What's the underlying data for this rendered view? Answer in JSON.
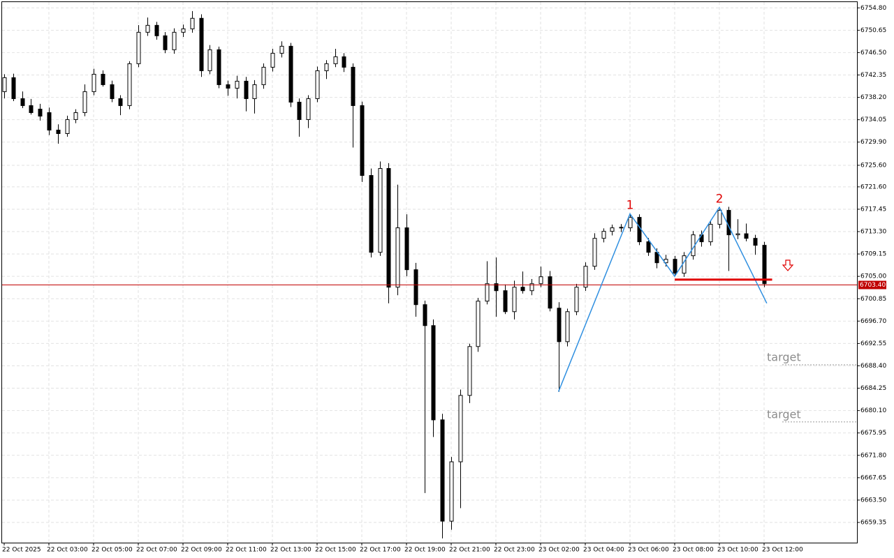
{
  "chart_data": {
    "type": "candlestick",
    "categories": [
      "22 Oct 2025",
      null,
      null,
      null,
      null,
      "22 Oct 03:00",
      null,
      null,
      null,
      null,
      "22 Oct 05:00",
      null,
      null,
      null,
      null,
      "22 Oct 07:00",
      null,
      null,
      null,
      null,
      "22 Oct 09:00",
      null,
      null,
      null,
      null,
      "22 Oct 11:00",
      null,
      null,
      null,
      null,
      "22 Oct 13:00",
      null,
      null,
      null,
      null,
      "22 Oct 15:00",
      null,
      null,
      null,
      null,
      "22 Oct 17:00",
      null,
      null,
      null,
      null,
      "22 Oct 19:00",
      null,
      null,
      null,
      null,
      "22 Oct 21:00",
      null,
      null,
      null,
      null,
      "22 Oct 23:00",
      null,
      null,
      null,
      null,
      "23 Oct 02:00",
      null,
      null,
      null,
      null,
      "23 Oct 04:00",
      null,
      null,
      null,
      null,
      "23 Oct 06:00",
      null,
      null,
      null,
      null,
      "23 Oct 08:00",
      null,
      null,
      null,
      null,
      "23 Oct 10:00",
      null,
      null,
      null,
      null,
      "23 Oct 12:00"
    ],
    "ohlc": [
      [
        6739.26,
        6742.49,
        6738.0,
        6741.85
      ],
      [
        6741.85,
        6742.6,
        6737.5,
        6737.96
      ],
      [
        6737.96,
        6739.3,
        6736.2,
        6736.67
      ],
      [
        6736.67,
        6737.9,
        6735.0,
        6735.37
      ],
      [
        6736.02,
        6737.0,
        6733.9,
        6734.72
      ],
      [
        6735.37,
        6736.3,
        6731.2,
        6732.13
      ],
      [
        6732.13,
        6733.2,
        6729.6,
        6731.48
      ],
      [
        6731.48,
        6734.8,
        6730.9,
        6734.08
      ],
      [
        6734.08,
        6736.0,
        6733.4,
        6735.37
      ],
      [
        6735.37,
        6740.6,
        6734.7,
        6739.26
      ],
      [
        6739.26,
        6743.5,
        6738.6,
        6742.49
      ],
      [
        6742.49,
        6743.2,
        6740.2,
        6740.55
      ],
      [
        6740.55,
        6741.3,
        6737.3,
        6737.96
      ],
      [
        6737.96,
        6738.6,
        6734.9,
        6736.67
      ],
      [
        6736.67,
        6744.9,
        6736.0,
        6744.44
      ],
      [
        6744.44,
        6751.6,
        6743.8,
        6750.27
      ],
      [
        6750.27,
        6753.0,
        6749.6,
        6751.56
      ],
      [
        6751.56,
        6752.2,
        6748.9,
        6749.62
      ],
      [
        6749.62,
        6750.3,
        6746.4,
        6747.03
      ],
      [
        6747.03,
        6751.0,
        6746.3,
        6750.27
      ],
      [
        6750.27,
        6751.7,
        6749.4,
        6750.91
      ],
      [
        6750.91,
        6754.2,
        6750.2,
        6752.86
      ],
      [
        6752.86,
        6753.6,
        6742.0,
        6743.14
      ],
      [
        6743.14,
        6747.9,
        6742.5,
        6747.03
      ],
      [
        6747.03,
        6747.6,
        6739.9,
        6740.55
      ],
      [
        6740.55,
        6741.3,
        6738.5,
        6739.9
      ],
      [
        6739.9,
        6742.2,
        6738.0,
        6741.2
      ],
      [
        6741.2,
        6742.0,
        6735.6,
        6737.96
      ],
      [
        6737.96,
        6741.4,
        6735.2,
        6740.55
      ],
      [
        6740.55,
        6744.5,
        6739.8,
        6743.79
      ],
      [
        6743.79,
        6747.2,
        6743.0,
        6746.38
      ],
      [
        6746.38,
        6748.6,
        6745.6,
        6747.68
      ],
      [
        6747.68,
        6748.3,
        6736.4,
        6737.31
      ],
      [
        6737.31,
        6738.0,
        6730.9,
        6734.08
      ],
      [
        6734.08,
        6738.6,
        6732.5,
        6737.96
      ],
      [
        6737.96,
        6743.9,
        6737.3,
        6743.14
      ],
      [
        6743.14,
        6745.1,
        6741.6,
        6744.44
      ],
      [
        6744.44,
        6747.2,
        6743.8,
        6745.73
      ],
      [
        6745.73,
        6746.4,
        6742.9,
        6743.79
      ],
      [
        6743.79,
        6744.5,
        6728.9,
        6736.67
      ],
      [
        6736.67,
        6737.4,
        6722.5,
        6723.71
      ],
      [
        6723.71,
        6725.0,
        6708.5,
        6709.46
      ],
      [
        6709.46,
        6726.3,
        6708.8,
        6725.01
      ],
      [
        6725.01,
        6726.0,
        6700.0,
        6702.99
      ],
      [
        6702.99,
        6722.0,
        6701.5,
        6714.0
      ],
      [
        6714.0,
        6716.5,
        6705.0,
        6706.23
      ],
      [
        6706.23,
        6707.5,
        6697.5,
        6699.75
      ],
      [
        6699.75,
        6700.5,
        6664.8,
        6695.86
      ],
      [
        6695.86,
        6697.0,
        6675.2,
        6678.38
      ],
      [
        6678.38,
        6679.5,
        6656.4,
        6659.59
      ],
      [
        6659.59,
        6671.5,
        6658.0,
        6670.6
      ],
      [
        6670.6,
        6684.0,
        6662.0,
        6682.91
      ],
      [
        6682.91,
        6692.5,
        6681.5,
        6691.98
      ],
      [
        6691.98,
        6701.0,
        6691.0,
        6700.4
      ],
      [
        6700.4,
        6707.8,
        6699.8,
        6703.64
      ],
      [
        6703.64,
        6708.5,
        6697.5,
        6702.34
      ],
      [
        6702.34,
        6703.5,
        6698.0,
        6698.45
      ],
      [
        6698.45,
        6704.2,
        6697.0,
        6702.99
      ],
      [
        6702.99,
        6705.9,
        6701.8,
        6702.34
      ],
      [
        6702.34,
        6704.5,
        6701.5,
        6703.64
      ],
      [
        6703.64,
        6706.8,
        6703.0,
        6704.93
      ],
      [
        6704.93,
        6706.0,
        6698.5,
        6699.1
      ],
      [
        6699.1,
        6700.2,
        6683.6,
        6692.88
      ],
      [
        6692.88,
        6699.0,
        6692.0,
        6698.45
      ],
      [
        6698.45,
        6703.6,
        6697.8,
        6702.99
      ],
      [
        6702.99,
        6707.6,
        6702.3,
        6706.87
      ],
      [
        6706.87,
        6713.0,
        6706.2,
        6712.05
      ],
      [
        6712.05,
        6713.9,
        6711.3,
        6713.35
      ],
      [
        6713.35,
        6714.6,
        6712.6,
        6714.0
      ],
      [
        6714.0,
        6714.7,
        6713.2,
        6714.1
      ],
      [
        6714.0,
        6716.6,
        6713.3,
        6715.94
      ],
      [
        6715.94,
        6716.5,
        6710.8,
        6711.41
      ],
      [
        6711.41,
        6712.1,
        6708.8,
        6709.46
      ],
      [
        6709.46,
        6710.2,
        6706.5,
        6707.52
      ],
      [
        6707.52,
        6709.0,
        6706.8,
        6708.17
      ],
      [
        6708.17,
        6708.8,
        6705.0,
        6705.58
      ],
      [
        6705.58,
        6709.5,
        6704.9,
        6708.82
      ],
      [
        6708.82,
        6713.4,
        6708.1,
        6712.7
      ],
      [
        6712.7,
        6713.5,
        6710.5,
        6711.41
      ],
      [
        6711.41,
        6715.3,
        6710.7,
        6714.65
      ],
      [
        6714.65,
        6717.8,
        6713.9,
        6717.24
      ],
      [
        6717.24,
        6717.9,
        6706.0,
        6712.7
      ],
      [
        6712.7,
        6715.6,
        6711.9,
        6712.9
      ],
      [
        6712.9,
        6714.8,
        6711.5,
        6712.05
      ],
      [
        6712.05,
        6712.7,
        6709.0,
        6710.76
      ],
      [
        6710.76,
        6711.4,
        6703.0,
        6703.64
      ]
    ],
    "ylim": [
      6655.6,
      6756.0
    ],
    "yticks": [
      {
        "value": 6754.8,
        "label": "6754.80"
      },
      {
        "value": 6750.65,
        "label": "6750.65"
      },
      {
        "value": 6746.5,
        "label": "6746.50"
      },
      {
        "value": 6742.35,
        "label": "6742.35"
      },
      {
        "value": 6738.2,
        "label": "6738.20"
      },
      {
        "value": 6734.05,
        "label": "6734.05"
      },
      {
        "value": 6729.9,
        "label": "6729.90"
      },
      {
        "value": 6725.6,
        "label": "6725.60"
      },
      {
        "value": 6721.6,
        "label": "6721.60"
      },
      {
        "value": 6717.45,
        "label": "6717.45"
      },
      {
        "value": 6713.3,
        "label": "6713.30"
      },
      {
        "value": 6709.15,
        "label": "6709.15"
      },
      {
        "value": 6705.0,
        "label": "6705.00"
      },
      {
        "value": 6700.85,
        "label": "6700.85"
      },
      {
        "value": 6696.7,
        "label": "6696.70"
      },
      {
        "value": 6692.55,
        "label": "6692.55"
      },
      {
        "value": 6688.4,
        "label": "6688.40"
      },
      {
        "value": 6684.25,
        "label": "6684.25"
      },
      {
        "value": 6680.1,
        "label": "6680.10"
      },
      {
        "value": 6675.95,
        "label": "6675.95"
      },
      {
        "value": 6671.8,
        "label": "6671.80"
      },
      {
        "value": 6667.65,
        "label": "6667.65"
      },
      {
        "value": 6663.5,
        "label": "6663.50"
      },
      {
        "value": 6659.35,
        "label": "6659.35"
      }
    ],
    "grid": true,
    "up_color": "#ffffff",
    "down_color": "#000000",
    "current_price": {
      "value": 6703.4,
      "label": "6703.40"
    },
    "current_price_color": "#c00000",
    "zigzag": {
      "x": [
        62,
        70,
        75,
        80,
        85.3
      ],
      "y": [
        6683.6,
        6716.6,
        6705.0,
        6717.8,
        6700.0
      ],
      "color": "#2f8fe0"
    },
    "peak_labels": [
      {
        "text": "1",
        "point": 1
      },
      {
        "text": "2",
        "point": 3
      }
    ],
    "neckline": {
      "x": [
        75,
        85.9
      ],
      "y": 6704.4,
      "color": "#e00000"
    },
    "targets": [
      {
        "text": "target",
        "y": 6688.6
      },
      {
        "text": "target",
        "y": 6678.0
      }
    ]
  }
}
